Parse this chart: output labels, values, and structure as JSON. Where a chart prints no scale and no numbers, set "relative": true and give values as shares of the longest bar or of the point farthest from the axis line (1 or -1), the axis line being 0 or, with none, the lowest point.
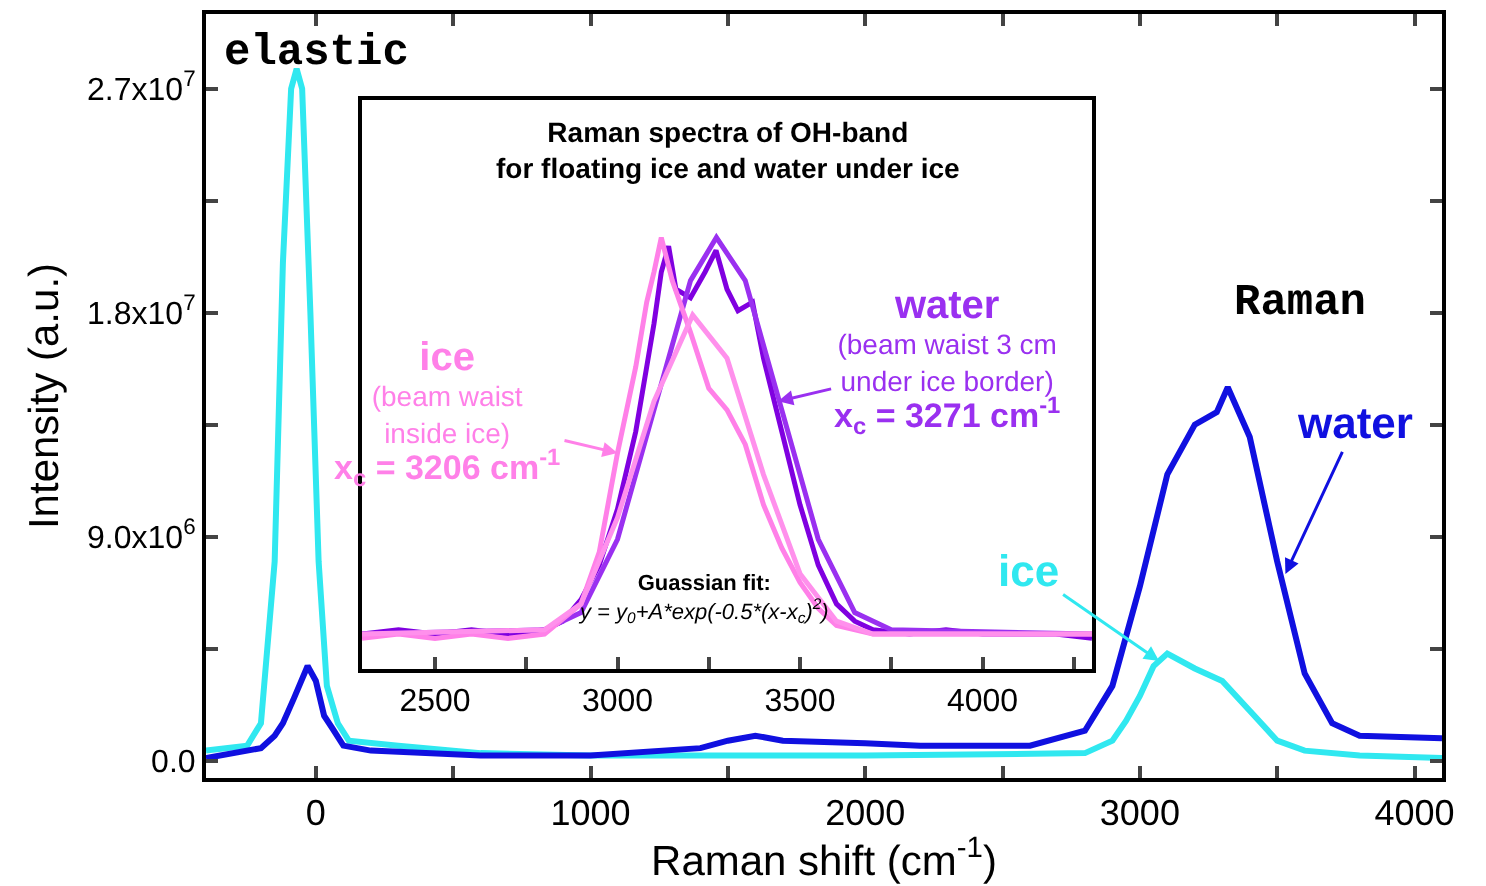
{
  "chart_data": [
    {
      "type": "line",
      "xlabel": "Raman shift (cm$^{-1}$)",
      "ylabel": "Intensity (a.u.)",
      "xlim": [
        -400,
        4100
      ],
      "ylim": [
        -700000,
        30000000
      ],
      "xticks": [
        0,
        {
          "value": 500,
          "label": null
        },
        1000,
        {
          "value": 1500,
          "label": null
        },
        2000,
        {
          "value": 2500,
          "label": null
        },
        3000,
        {
          "value": 3500,
          "label": null
        },
        4000
      ],
      "yticks": [
        {
          "value": 0,
          "label": "0.0"
        },
        {
          "value": 4500000,
          "label": null
        },
        {
          "value": 9000000,
          "label": "9.0x10$^{6}$"
        },
        {
          "value": 13500000,
          "label": null
        },
        {
          "value": 18000000,
          "label": "1.8x10$^{7}$"
        },
        {
          "value": 22500000,
          "label": null
        },
        {
          "value": 27000000,
          "label": "2.7x10$^{7}$"
        }
      ],
      "line_style": "solid",
      "marker": "none",
      "series": [
        {
          "color": "#30e8f0",
          "x": [
            -400,
            -250,
            -200,
            -150,
            -120,
            -90,
            -70,
            -50,
            -20,
            10,
            40,
            80,
            120,
            300,
            600,
            1000,
            2000,
            2800,
            2900,
            2950,
            3000,
            3050,
            3100,
            3200,
            3300,
            3400,
            3500,
            3600,
            3800,
            4100
          ],
          "values": [
            400000,
            600000,
            1500000,
            8000000,
            20000000,
            27000000,
            27800000,
            27000000,
            18000000,
            8000000,
            3000000,
            1500000,
            800000,
            600000,
            300000,
            200000,
            200000,
            300000,
            800000,
            1600000,
            2600000,
            3800000,
            4300000,
            3700000,
            3200000,
            2000000,
            800000,
            400000,
            200000,
            100000
          ]
        },
        {
          "color": "#1010e0",
          "x": [
            -400,
            -200,
            -150,
            -120,
            -80,
            -30,
            0,
            30,
            60,
            100,
            200,
            600,
            1000,
            1400,
            1500,
            1600,
            1700,
            2000,
            2200,
            2600,
            2800,
            2900,
            3000,
            3100,
            3200,
            3280,
            3320,
            3400,
            3500,
            3600,
            3700,
            3800,
            4100
          ],
          "values": [
            100000,
            500000,
            1000000,
            1500000,
            2500000,
            3800000,
            3200000,
            1800000,
            1300000,
            600000,
            400000,
            200000,
            200000,
            500000,
            800000,
            1000000,
            800000,
            700000,
            600000,
            600000,
            1200000,
            3000000,
            7000000,
            11500000,
            13500000,
            14000000,
            15000000,
            13000000,
            8000000,
            3500000,
            1500000,
            1000000,
            900000
          ]
        }
      ],
      "annotations": [
        "elastic",
        "Raman",
        {
          "text": "ice",
          "x": 3070,
          "y": 4000000
        },
        {
          "text": "water",
          "x": 3530,
          "y": 7500000
        }
      ]
    },
    {
      "type": "line",
      "title": "Raman spectra of OH-band\nfor floating ice and water under ice",
      "relative": true,
      "xlim": [
        2300,
        4300
      ],
      "xticks": [
        2500,
        {
          "value": 2750,
          "label": null
        },
        3000,
        {
          "value": 3250,
          "label": null
        },
        3500,
        {
          "value": 3750,
          "label": null
        },
        4000,
        {
          "value": 4250,
          "label": null
        }
      ],
      "tick_labels": "x",
      "line_style": "solid",
      "marker": "none",
      "series": [
        {
          "color": "#8000e0",
          "x": [
            2300,
            2400,
            2500,
            2600,
            2700,
            2800,
            2850,
            2900,
            2950,
            3000,
            3050,
            3080,
            3100,
            3120,
            3140,
            3160,
            3200,
            3240,
            3270,
            3300,
            3330,
            3370,
            3400,
            3450,
            3500,
            3550,
            3600,
            3650,
            3700,
            3800,
            3900,
            4000,
            4100,
            4200,
            4300
          ],
          "values": [
            0.08,
            0.09,
            0.08,
            0.09,
            0.08,
            0.09,
            0.11,
            0.16,
            0.24,
            0.37,
            0.55,
            0.7,
            0.8,
            0.92,
            0.98,
            0.88,
            0.86,
            0.92,
            0.97,
            0.88,
            0.83,
            0.85,
            0.72,
            0.55,
            0.38,
            0.24,
            0.15,
            0.11,
            0.09,
            0.08,
            0.09,
            0.08,
            0.08,
            0.08,
            0.07
          ]
        },
        {
          "color": "#9a30f0",
          "x": [
            2300,
            2800,
            2900,
            3000,
            3100,
            3200,
            3271,
            3350,
            3450,
            3550,
            3650,
            3750,
            4300
          ],
          "values": [
            0.08,
            0.09,
            0.13,
            0.3,
            0.6,
            0.9,
            1.0,
            0.9,
            0.6,
            0.3,
            0.13,
            0.09,
            0.08
          ]
        },
        {
          "color": "#ff80e8",
          "x": [
            2300,
            2400,
            2500,
            2600,
            2700,
            2800,
            2900,
            2950,
            3000,
            3050,
            3080,
            3100,
            3120,
            3150,
            3200,
            3250,
            3300,
            3350,
            3400,
            3450,
            3500,
            3550,
            3600,
            3700,
            3800,
            4000,
            4300
          ],
          "values": [
            0.07,
            0.08,
            0.07,
            0.08,
            0.07,
            0.08,
            0.15,
            0.27,
            0.5,
            0.7,
            0.85,
            0.92,
            1.0,
            0.9,
            0.78,
            0.65,
            0.6,
            0.52,
            0.38,
            0.28,
            0.2,
            0.14,
            0.1,
            0.08,
            0.08,
            0.08,
            0.08
          ]
        },
        {
          "color": "#ff90ec",
          "x": [
            2300,
            2800,
            2900,
            3000,
            3100,
            3206,
            3300,
            3400,
            3500,
            3600,
            3700,
            4300
          ],
          "values": [
            0.08,
            0.09,
            0.15,
            0.35,
            0.62,
            0.82,
            0.72,
            0.45,
            0.22,
            0.11,
            0.08,
            0.08
          ]
        }
      ],
      "annotations": [
        {
          "text": "ice\n(beam waist\ninside ice)\nx$_{c}$ = 3206 cm$^{-1}$",
          "x": 3000,
          "y": 0.5
        },
        {
          "text": "water\n(beam waist 3 cm\nunder ice border)\nx$_{c}$ = 3271 cm$^{-1}$",
          "x": 3440,
          "y": 0.62
        },
        "Guassian fit:\ny = y$_{0}$+A*exp(-0.5*(x-x$_{c}$)$^{2}$)"
      ]
    }
  ]
}
